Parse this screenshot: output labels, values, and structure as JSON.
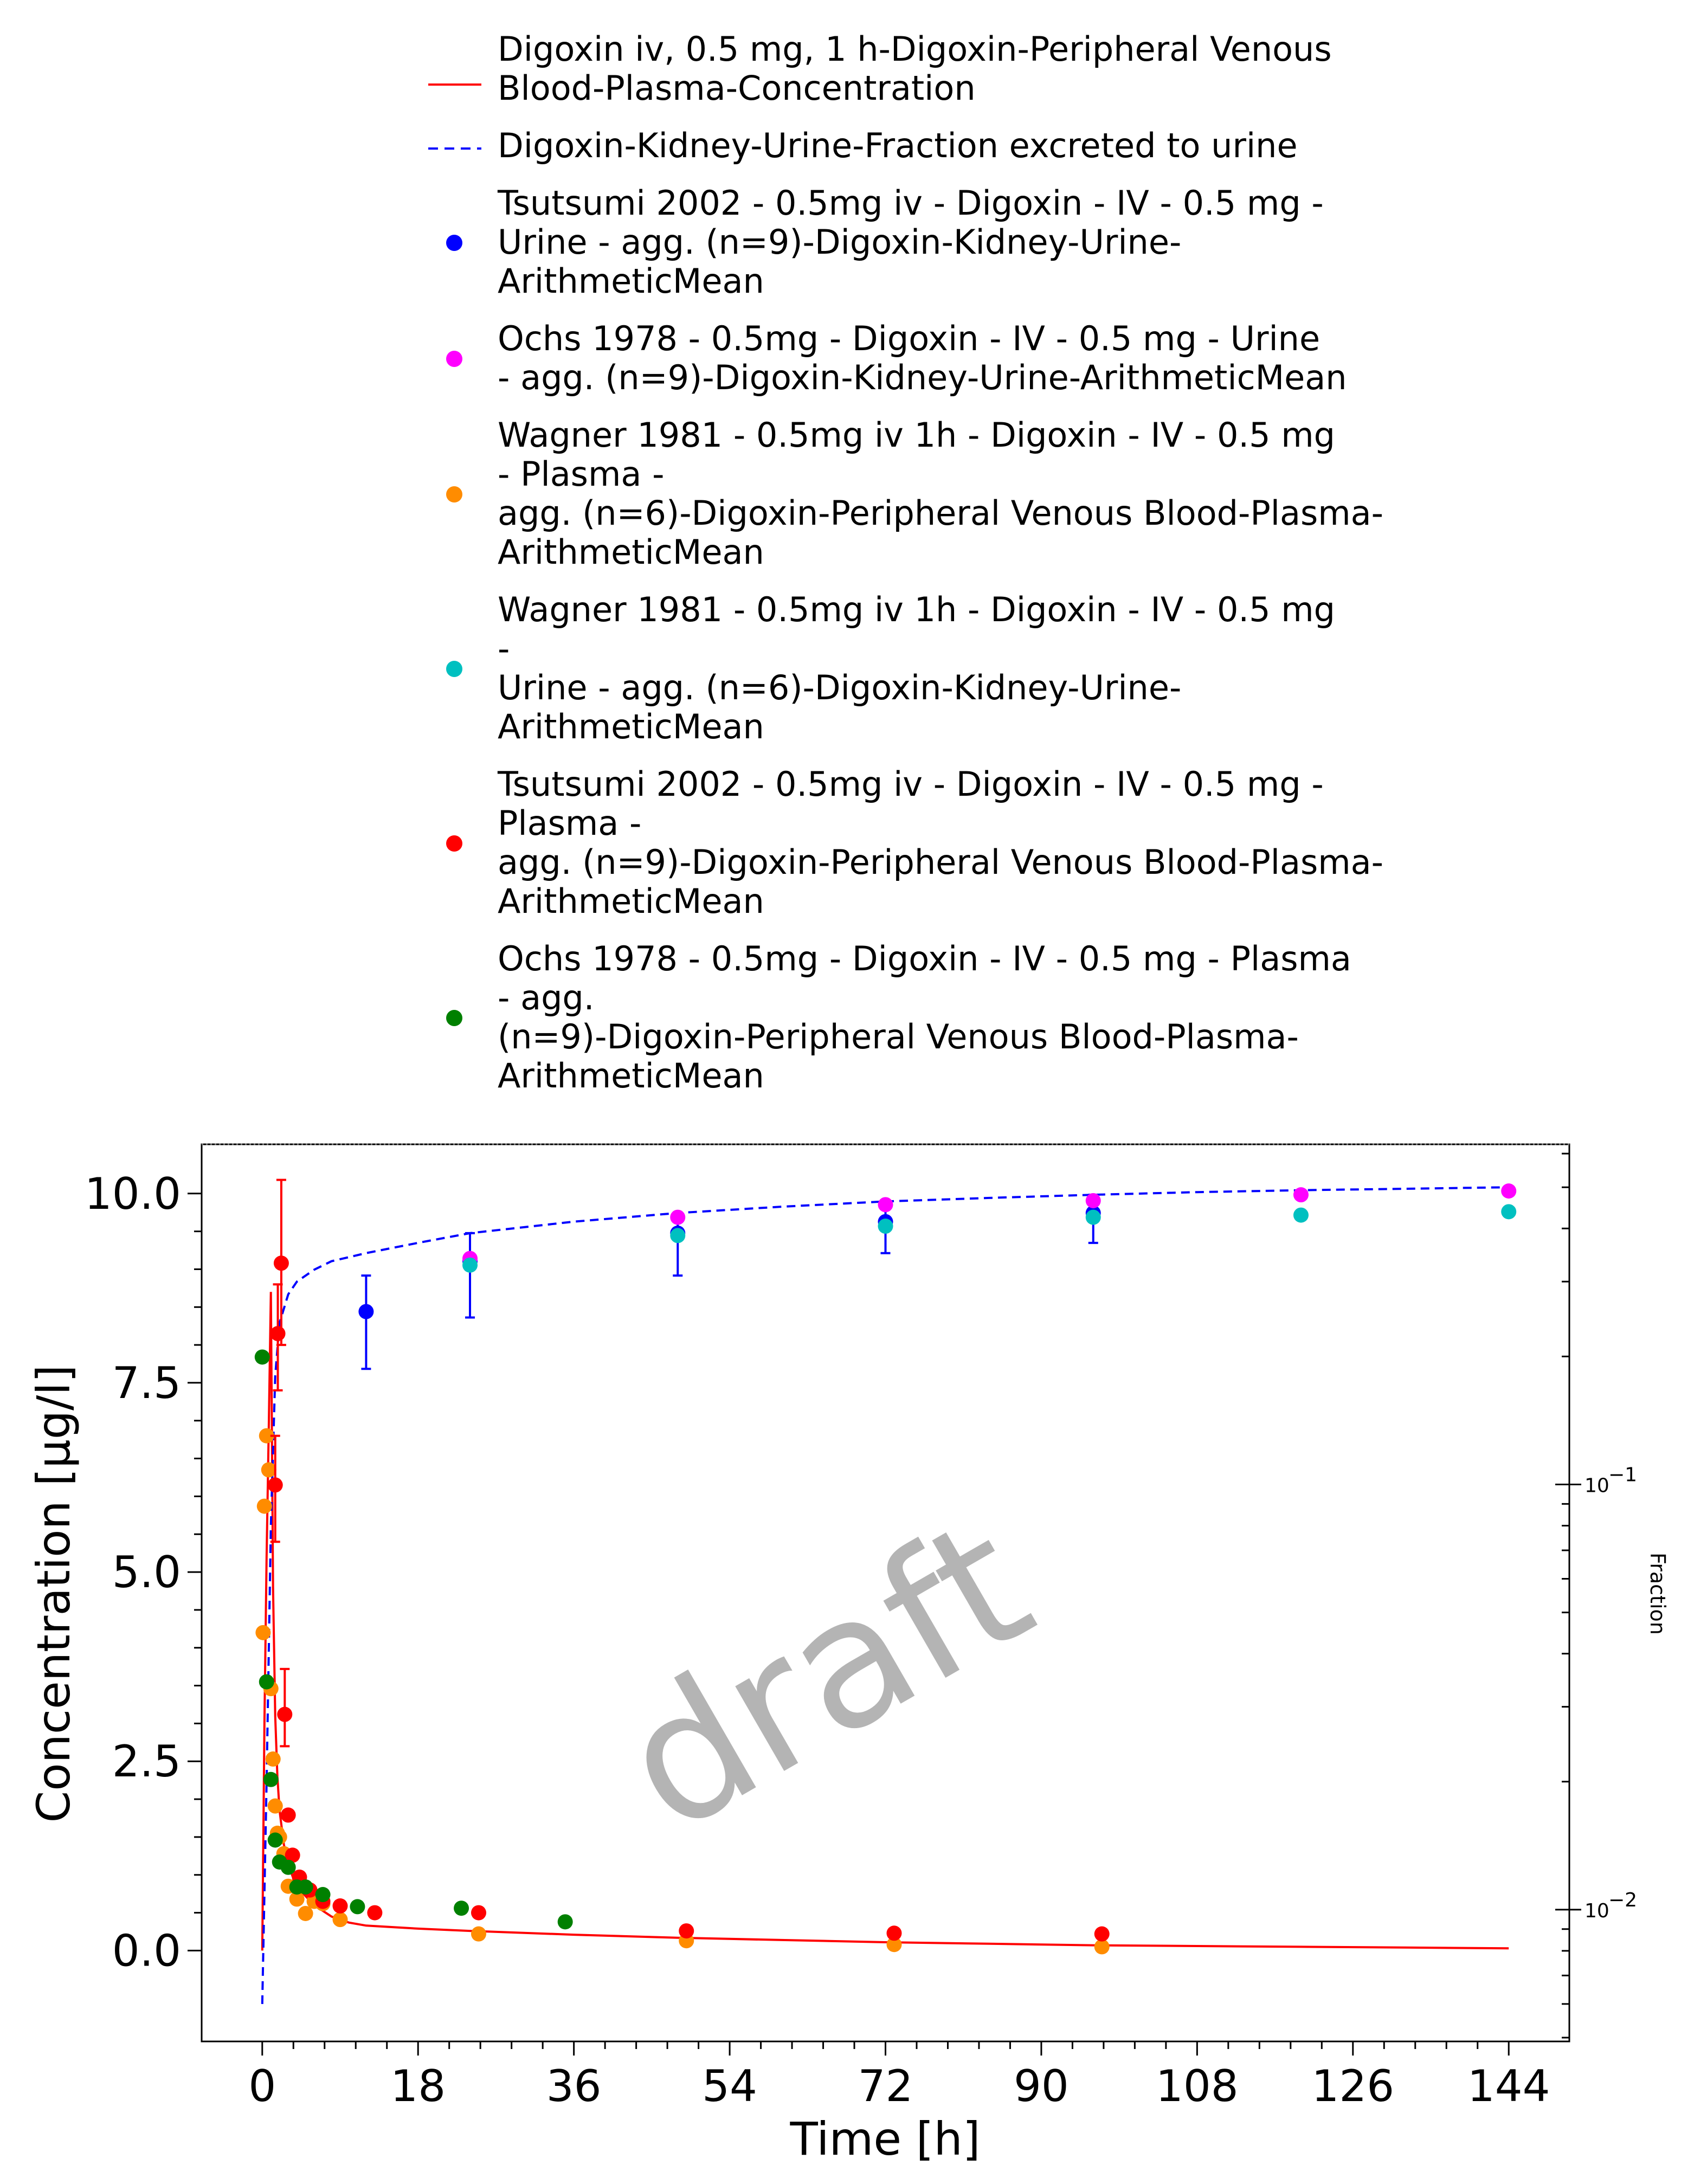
{
  "chart_data": {
    "type": "line",
    "xlabel": "Time [h]",
    "ylabel": "Concentration [µg/l]",
    "y2label": "Fraction",
    "watermark": "draft",
    "xlim": [
      -7,
      151
    ],
    "ylim": [
      -1.2,
      10.65
    ],
    "y2lim_log10": [
      -2.31,
      -0.2
    ],
    "x_ticks": [
      0,
      18,
      36,
      54,
      72,
      90,
      108,
      126,
      144
    ],
    "y_ticks": [
      0.0,
      2.5,
      5.0,
      7.5,
      10.0
    ],
    "y_tick_labels": [
      "0.0",
      "2.5",
      "5.0",
      "7.5",
      "10.0"
    ],
    "y2_ticks_log10": [
      -1,
      -2
    ],
    "y2_tick_labels": [
      "10",
      "10"
    ],
    "y2_tick_exponents": [
      "−1",
      "−2"
    ],
    "legend_position": "top",
    "colors": {
      "sim_plasma": "#ff0000",
      "sim_urine": "#0000ff",
      "tsutsumi_urine": "#0000ff",
      "ochs_urine": "#ff00ff",
      "wagner_plasma": "#ff8c00",
      "wagner_urine": "#00c0c0",
      "tsutsumi_plasma": "#ff0000",
      "ochs_plasma": "#008000"
    },
    "legend": [
      {
        "key": "sim_plasma",
        "kind": "line",
        "lines": [
          "Digoxin iv, 0.5 mg, 1 h-Digoxin-Peripheral Venous",
          "Blood-Plasma-Concentration"
        ]
      },
      {
        "key": "sim_urine",
        "kind": "dash",
        "lines": [
          "Digoxin-Kidney-Urine-Fraction excreted to urine"
        ]
      },
      {
        "key": "tsutsumi_urine",
        "kind": "dot",
        "lines": [
          "Tsutsumi 2002 - 0.5mg iv - Digoxin - IV - 0.5 mg -",
          "Urine - agg. (n=9)-Digoxin-Kidney-Urine-",
          "ArithmeticMean"
        ]
      },
      {
        "key": "ochs_urine",
        "kind": "dot",
        "lines": [
          "Ochs 1978 - 0.5mg - Digoxin - IV - 0.5 mg - Urine",
          "- agg. (n=9)-Digoxin-Kidney-Urine-ArithmeticMean"
        ]
      },
      {
        "key": "wagner_plasma",
        "kind": "dot",
        "lines": [
          "Wagner 1981 - 0.5mg iv 1h - Digoxin - IV - 0.5 mg",
          "- Plasma -",
          "agg. (n=6)-Digoxin-Peripheral Venous Blood-Plasma-",
          "ArithmeticMean"
        ]
      },
      {
        "key": "wagner_urine",
        "kind": "dot",
        "lines": [
          "Wagner 1981 - 0.5mg iv 1h - Digoxin - IV - 0.5 mg",
          "-",
          "Urine - agg. (n=6)-Digoxin-Kidney-Urine-",
          "ArithmeticMean"
        ]
      },
      {
        "key": "tsutsumi_plasma",
        "kind": "dot",
        "lines": [
          "Tsutsumi 2002 - 0.5mg iv - Digoxin - IV - 0.5 mg -",
          "Plasma -",
          "agg. (n=9)-Digoxin-Peripheral Venous Blood-Plasma-",
          "ArithmeticMean"
        ]
      },
      {
        "key": "ochs_plasma",
        "kind": "dot",
        "lines": [
          "Ochs 1978 - 0.5mg - Digoxin - IV - 0.5 mg - Plasma",
          "- agg.",
          "(n=9)-Digoxin-Peripheral Venous Blood-Plasma-",
          "ArithmeticMean"
        ]
      }
    ],
    "series": [
      {
        "key": "sim_plasma",
        "kind": "line",
        "axis": "left",
        "x": [
          0,
          0.25,
          0.5,
          0.75,
          1.0,
          1.25,
          1.5,
          1.75,
          2.0,
          2.5,
          3,
          3.5,
          4,
          5,
          6,
          8,
          10,
          12,
          18,
          24,
          36,
          48,
          60,
          72,
          84,
          96,
          108,
          120,
          132,
          144
        ],
        "y": [
          0,
          3.0,
          5.2,
          6.9,
          8.7,
          4.8,
          3.1,
          2.3,
          1.85,
          1.4,
          1.15,
          0.98,
          0.85,
          0.72,
          0.6,
          0.45,
          0.37,
          0.33,
          0.29,
          0.26,
          0.21,
          0.17,
          0.14,
          0.11,
          0.09,
          0.07,
          0.06,
          0.05,
          0.04,
          0.03
        ]
      },
      {
        "key": "sim_urine",
        "kind": "dash",
        "axis": "right",
        "x": [
          0,
          0.5,
          1,
          1.5,
          2,
          3,
          4,
          6,
          8,
          12,
          18,
          24,
          36,
          48,
          60,
          72,
          84,
          96,
          108,
          120,
          132,
          144
        ],
        "y": [
          0.006,
          0.02,
          0.08,
          0.18,
          0.24,
          0.28,
          0.3,
          0.32,
          0.335,
          0.35,
          0.37,
          0.39,
          0.415,
          0.435,
          0.45,
          0.463,
          0.472,
          0.48,
          0.487,
          0.492,
          0.496,
          0.5
        ]
      },
      {
        "key": "tsutsumi_urine",
        "kind": "dot",
        "axis": "right",
        "x": [
          12,
          24,
          48,
          72,
          96
        ],
        "y": [
          0.255,
          0.335,
          0.39,
          0.415,
          0.435
        ],
        "err_lo": [
          0.187,
          0.247,
          0.31,
          0.35,
          0.37
        ],
        "err_hi": [
          0.31,
          0.39,
          0.435,
          0.463,
          0.48
        ]
      },
      {
        "key": "ochs_urine",
        "kind": "dot",
        "axis": "right",
        "x": [
          24,
          48,
          72,
          96,
          120,
          144
        ],
        "y": [
          0.34,
          0.425,
          0.455,
          0.465,
          0.48,
          0.49
        ]
      },
      {
        "key": "wagner_urine",
        "kind": "dot",
        "axis": "right",
        "x": [
          24,
          48,
          72,
          96,
          120,
          144
        ],
        "y": [
          0.328,
          0.385,
          0.405,
          0.425,
          0.43,
          0.438
        ]
      },
      {
        "key": "wagner_plasma",
        "kind": "dot",
        "axis": "left",
        "x": [
          0.1,
          0.25,
          0.5,
          0.75,
          1.0,
          1.25,
          1.5,
          1.75,
          2.0,
          2.5,
          3,
          4,
          5,
          6,
          7,
          9,
          25,
          49,
          73,
          97
        ],
        "y": [
          4.2,
          5.87,
          6.8,
          6.35,
          3.46,
          2.53,
          1.91,
          1.55,
          1.5,
          1.28,
          0.85,
          0.68,
          0.49,
          0.65,
          0.62,
          0.41,
          0.22,
          0.13,
          0.08,
          0.05
        ]
      },
      {
        "key": "tsutsumi_plasma",
        "kind": "dot",
        "axis": "left",
        "x": [
          1.5,
          1.8,
          2.2,
          2.6,
          3.0,
          3.5,
          4.3,
          5.5,
          7.0,
          9.0,
          13,
          25,
          49,
          73,
          97
        ],
        "y": [
          6.15,
          8.15,
          9.08,
          3.12,
          1.79,
          1.26,
          0.97,
          0.8,
          0.65,
          0.59,
          0.5,
          0.5,
          0.26,
          0.23,
          0.22
        ],
        "err_lo": [
          5.4,
          7.4,
          8.0,
          2.7,
          null,
          null,
          null,
          null,
          null,
          null,
          null,
          null,
          null,
          null,
          null
        ],
        "err_hi": [
          6.8,
          8.8,
          10.18,
          3.72,
          null,
          null,
          null,
          null,
          null,
          null,
          null,
          null,
          null,
          null,
          null
        ]
      },
      {
        "key": "ochs_plasma",
        "kind": "dot",
        "axis": "left",
        "x": [
          0,
          0.5,
          1.0,
          1.5,
          2.0,
          3.0,
          4.0,
          5.0,
          7.0,
          11,
          23,
          35
        ],
        "y": [
          7.84,
          3.55,
          2.26,
          1.46,
          1.17,
          1.1,
          0.84,
          0.84,
          0.74,
          0.58,
          0.56,
          0.38
        ]
      }
    ]
  }
}
